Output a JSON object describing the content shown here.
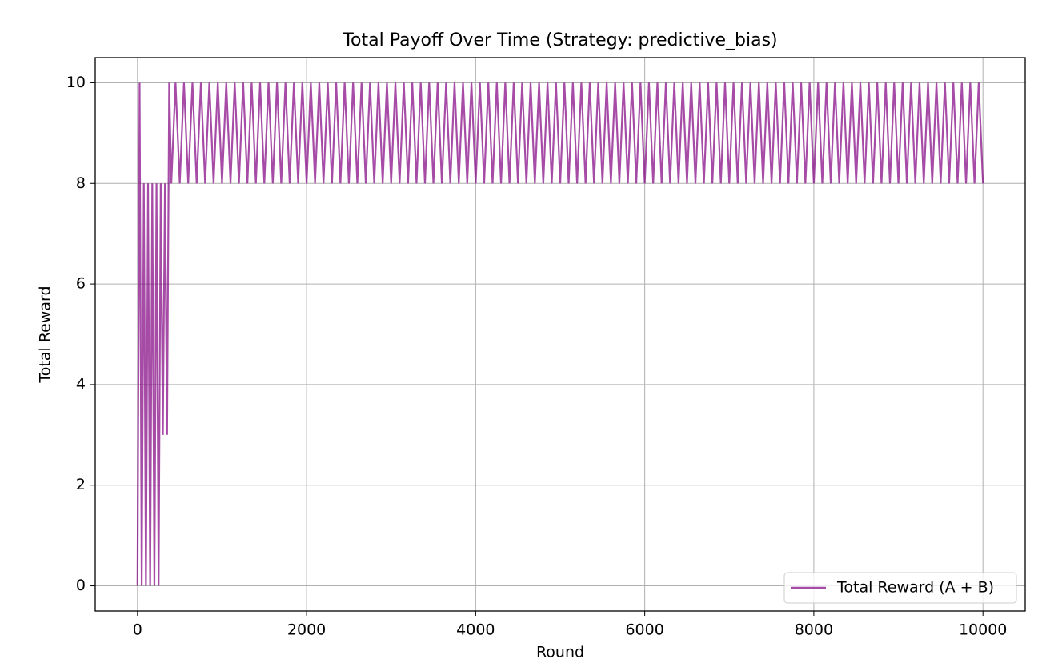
{
  "chart_data": {
    "type": "line",
    "title": "Total Payoff Over Time (Strategy: predictive_bias)",
    "xlabel": "Round",
    "ylabel": "Total Reward",
    "x": [
      0,
      25,
      50,
      75,
      100,
      125,
      150,
      175,
      200,
      225,
      250,
      275,
      300,
      325,
      350,
      375,
      400,
      450,
      500,
      550,
      600,
      650,
      700,
      750,
      800,
      850,
      900,
      950,
      1000,
      1050,
      1100,
      1150,
      1200,
      1250,
      1300,
      1350,
      1400,
      1450,
      1500,
      1550,
      1600,
      1650,
      1700,
      1750,
      1800,
      1850,
      1900,
      1950,
      2000,
      2050,
      2100,
      2150,
      2200,
      2250,
      2300,
      2350,
      2400,
      2450,
      2500,
      2550,
      2600,
      2650,
      2700,
      2750,
      2800,
      2850,
      2900,
      2950,
      3000,
      3050,
      3100,
      3150,
      3200,
      3250,
      3300,
      3350,
      3400,
      3450,
      3500,
      3550,
      3600,
      3650,
      3700,
      3750,
      3800,
      3850,
      3900,
      3950,
      4000,
      4050,
      4100,
      4150,
      4200,
      4250,
      4300,
      4350,
      4400,
      4450,
      4500,
      4550,
      4600,
      4650,
      4700,
      4750,
      4800,
      4850,
      4900,
      4950,
      5000,
      5050,
      5100,
      5150,
      5200,
      5250,
      5300,
      5350,
      5400,
      5450,
      5500,
      5550,
      5600,
      5650,
      5700,
      5750,
      5800,
      5850,
      5900,
      5950,
      6000,
      6050,
      6100,
      6150,
      6200,
      6250,
      6300,
      6350,
      6400,
      6450,
      6500,
      6550,
      6600,
      6650,
      6700,
      6750,
      6800,
      6850,
      6900,
      6950,
      7000,
      7050,
      7100,
      7150,
      7200,
      7250,
      7300,
      7350,
      7400,
      7450,
      7500,
      7550,
      7600,
      7650,
      7700,
      7750,
      7800,
      7850,
      7900,
      7950,
      8000,
      8050,
      8100,
      8150,
      8200,
      8250,
      8300,
      8350,
      8400,
      8450,
      8500,
      8550,
      8600,
      8650,
      8700,
      8750,
      8800,
      8850,
      8900,
      8950,
      9000,
      9050,
      9100,
      9150,
      9200,
      9250,
      9300,
      9350,
      9400,
      9450,
      9500,
      9550,
      9600,
      9650,
      9700,
      9750,
      9800,
      9850,
      9900,
      9950,
      10000
    ],
    "series": [
      {
        "name": "Total Reward (A + B)",
        "color": "#800080",
        "alpha": 0.7,
        "values": [
          0,
          10,
          0,
          8,
          0,
          8,
          0,
          8,
          0,
          8,
          0,
          8,
          3,
          8,
          3,
          10,
          8,
          10,
          8,
          10,
          8,
          10,
          8,
          10,
          8,
          10,
          8,
          10,
          8,
          10,
          8,
          10,
          8,
          10,
          8,
          10,
          8,
          10,
          8,
          10,
          8,
          10,
          8,
          10,
          8,
          10,
          8,
          10,
          8,
          10,
          8,
          10,
          8,
          10,
          8,
          10,
          8,
          10,
          8,
          10,
          8,
          10,
          8,
          10,
          8,
          10,
          8,
          10,
          8,
          10,
          8,
          10,
          8,
          10,
          8,
          10,
          8,
          10,
          8,
          10,
          8,
          10,
          8,
          10,
          8,
          10,
          8,
          10,
          8,
          10,
          8,
          10,
          8,
          10,
          8,
          10,
          8,
          10,
          8,
          10,
          8,
          10,
          8,
          10,
          8,
          10,
          8,
          10,
          8,
          10,
          8,
          10,
          8,
          10,
          8,
          10,
          8,
          10,
          8,
          10,
          8,
          10,
          8,
          10,
          8,
          10,
          8,
          10,
          8,
          10,
          8,
          10,
          8,
          10,
          8,
          10,
          8,
          10,
          8,
          10,
          8,
          10,
          8,
          10,
          8,
          10,
          8,
          10,
          8,
          10,
          8,
          10,
          8,
          10,
          8,
          10,
          8,
          10,
          8,
          10,
          8,
          10,
          8,
          10,
          8,
          10,
          8,
          10,
          8,
          10,
          8,
          10,
          8,
          10,
          8,
          10,
          8,
          10,
          8,
          10,
          8,
          10,
          8,
          10,
          8,
          10,
          8,
          10,
          8,
          10,
          8,
          10,
          8,
          10,
          8,
          10,
          8,
          10,
          8,
          10,
          8,
          10,
          8,
          10,
          8,
          10,
          8,
          10,
          8
        ]
      }
    ],
    "xlim": [
      -500,
      10500
    ],
    "ylim": [
      -0.5,
      10.5
    ],
    "xticks": [
      0,
      2000,
      4000,
      6000,
      8000,
      10000
    ],
    "yticks": [
      0,
      2,
      4,
      6,
      8,
      10
    ],
    "grid": true,
    "legend": "lower right"
  }
}
